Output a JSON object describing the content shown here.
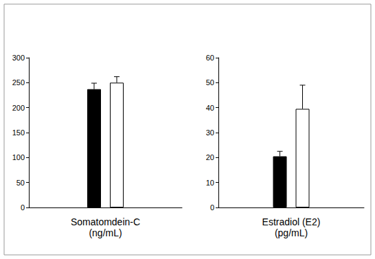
{
  "chart_data": [
    {
      "type": "bar",
      "xlabel": "Somatomdein-C\n(ng/mL)",
      "categories": [
        null
      ],
      "series": [
        {
          "color": "#000000",
          "values": [
            237
          ],
          "errors": [
            12
          ]
        },
        {
          "color": "#ffffff",
          "values": [
            250
          ],
          "errors": [
            12
          ]
        }
      ],
      "ylim": [
        0,
        300
      ],
      "yticks": [
        0,
        50,
        100,
        150,
        200,
        250,
        300
      ],
      "grid": false
    },
    {
      "type": "bar",
      "xlabel": "Estradiol (E2)\n(pg/mL)",
      "categories": [
        null
      ],
      "series": [
        {
          "color": "#000000",
          "values": [
            20.5
          ],
          "errors": [
            2
          ]
        },
        {
          "color": "#ffffff",
          "values": [
            39.5
          ],
          "errors": [
            9.5
          ]
        }
      ],
      "ylim": [
        0,
        60
      ],
      "yticks": [
        0,
        10,
        20,
        30,
        40,
        50,
        60
      ],
      "grid": false
    }
  ]
}
